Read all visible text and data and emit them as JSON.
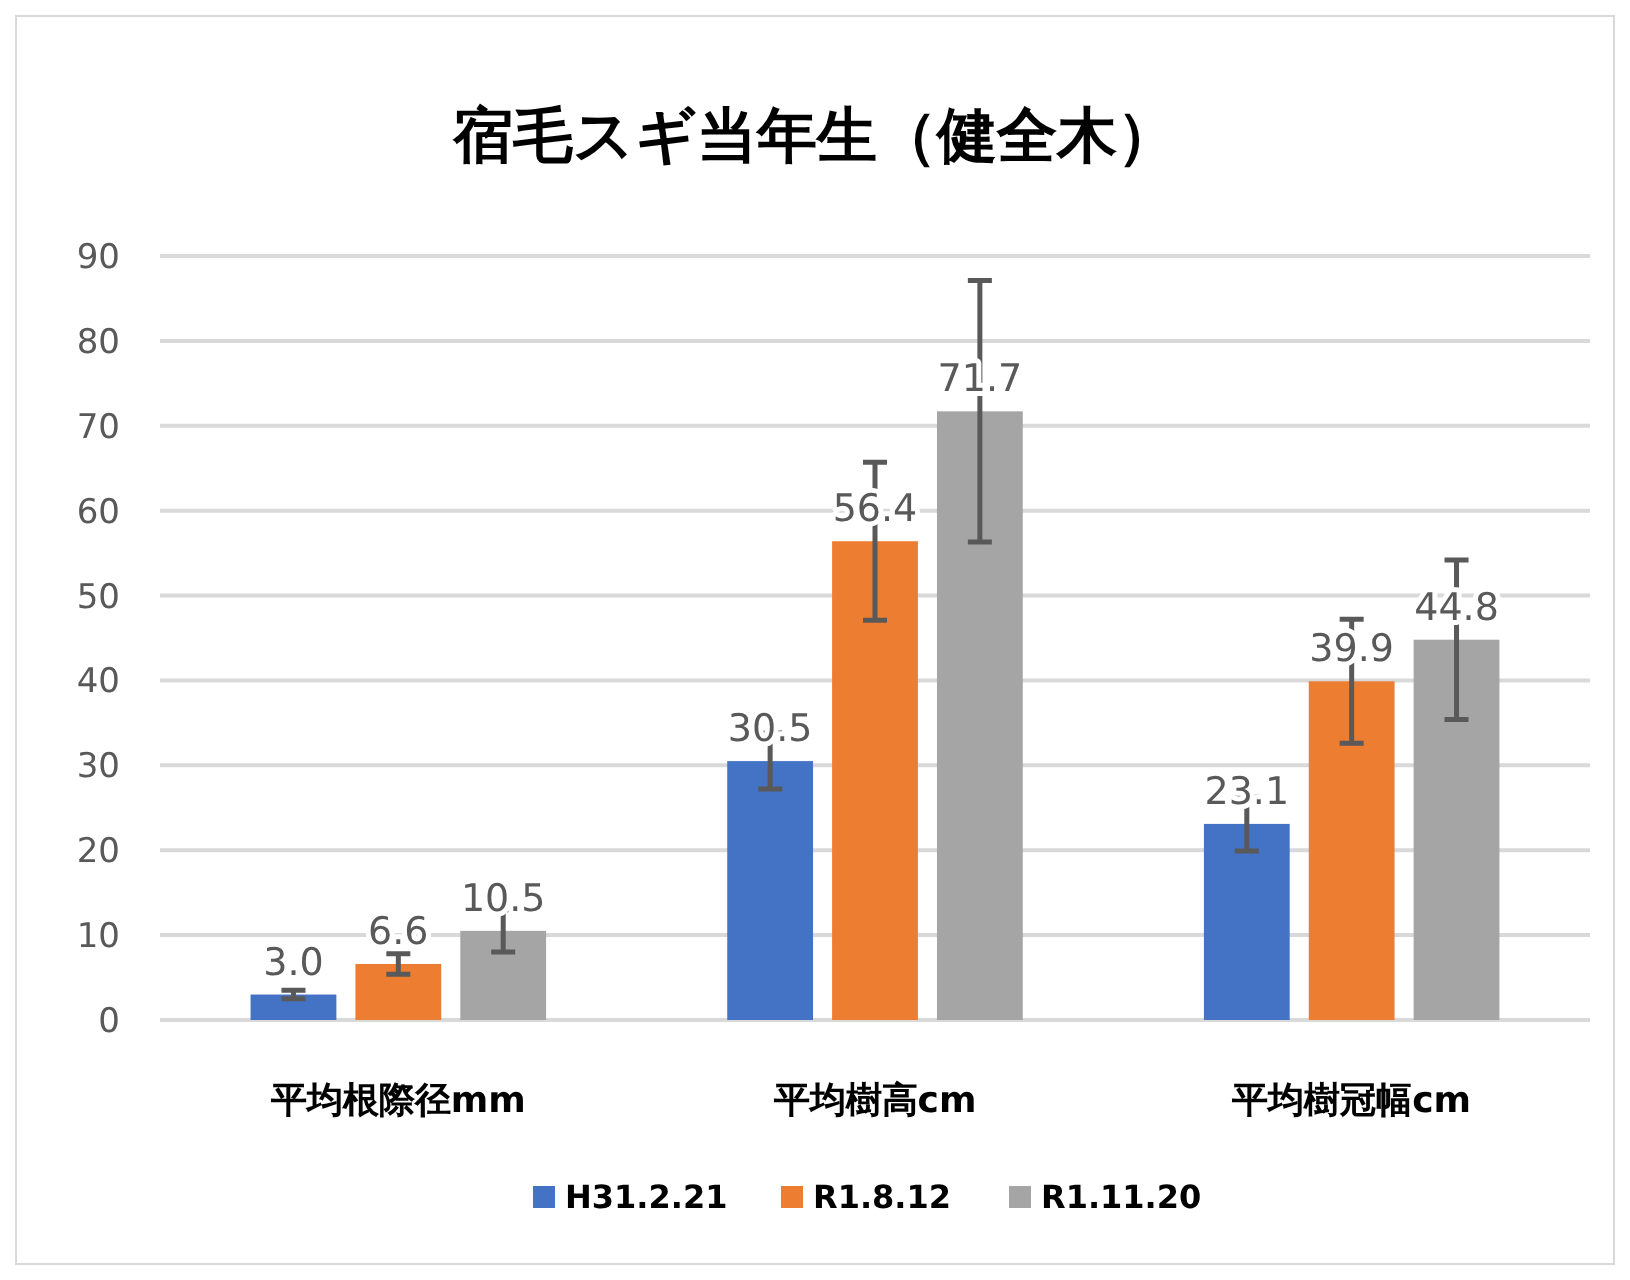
{
  "chart_data": {
    "type": "bar",
    "title": "宿毛スギ当年生（健全木）",
    "categories": [
      "平均根際径mm",
      "平均樹高cm",
      "平均樹冠幅cm"
    ],
    "series": [
      {
        "name": "H31.2.21",
        "color": "#4472c4",
        "values": [
          3.0,
          30.5,
          23.1
        ],
        "errors": [
          0.5,
          3.3,
          3.2
        ],
        "value_labels": [
          "3.0",
          "30.5",
          "23.1"
        ]
      },
      {
        "name": "R1.8.12",
        "color": "#ed7d31",
        "values": [
          6.6,
          56.4,
          39.9
        ],
        "errors": [
          1.2,
          9.3,
          7.3
        ],
        "value_labels": [
          "6.6",
          "56.4",
          "39.9"
        ]
      },
      {
        "name": "R1.11.20",
        "color": "#a5a5a5",
        "values": [
          10.5,
          71.7,
          44.8
        ],
        "errors": [
          2.5,
          15.4,
          9.4
        ],
        "value_labels": [
          "10.5",
          "71.7",
          "44.8"
        ]
      }
    ],
    "ylim": [
      0,
      90
    ],
    "yticks": [
      0,
      10,
      20,
      30,
      40,
      50,
      60,
      70,
      80,
      90
    ],
    "grid": "y",
    "legend": "bottom"
  }
}
